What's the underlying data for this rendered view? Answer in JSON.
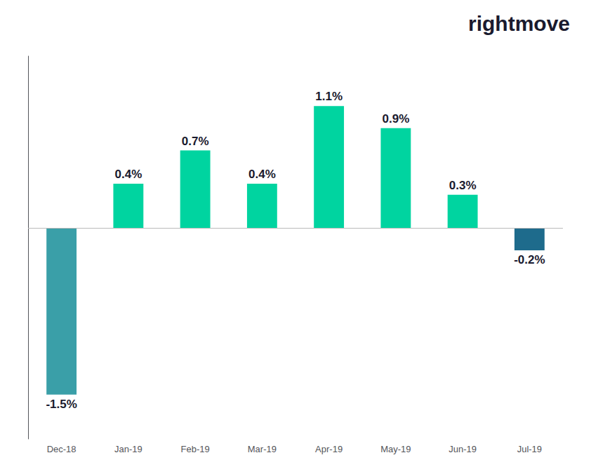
{
  "chart_data": {
    "type": "bar",
    "categories": [
      "Dec-18",
      "Jan-19",
      "Feb-19",
      "Mar-19",
      "Apr-19",
      "May-19",
      "Jun-19",
      "Jul-19"
    ],
    "values": [
      -1.5,
      0.4,
      0.7,
      0.4,
      1.1,
      0.9,
      0.3,
      -0.2
    ],
    "value_labels": [
      "-1.5%",
      "0.4%",
      "0.7%",
      "0.4%",
      "1.1%",
      "0.9%",
      "0.3%",
      "-0.2%"
    ],
    "data_labels": true,
    "colors": [
      "#3a9fa8",
      "#00d4a0",
      "#00d4a0",
      "#00d4a0",
      "#00d4a0",
      "#00d4a0",
      "#00d4a0",
      "#1e6b8c"
    ],
    "ylim": [
      -1.9,
      1.55
    ],
    "tick_labels": "x",
    "grid": false,
    "annotation": "rightmove"
  }
}
